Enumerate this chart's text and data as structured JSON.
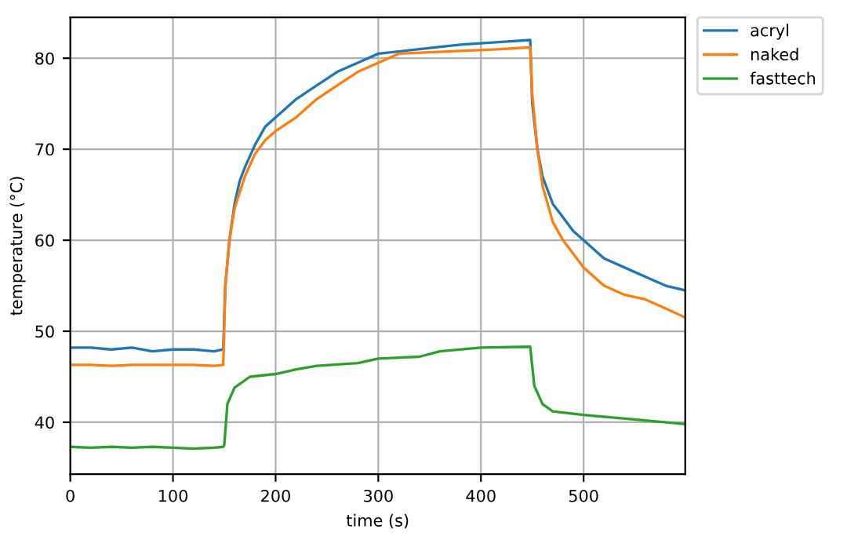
{
  "chart_data": {
    "type": "line",
    "xlabel": "time (s)",
    "ylabel": "temperature (°C)",
    "xlim": [
      0,
      599
    ],
    "ylim": [
      34.3,
      84.5
    ],
    "xticks": [
      0,
      100,
      200,
      300,
      400,
      500
    ],
    "yticks": [
      40,
      50,
      60,
      70,
      80
    ],
    "grid": true,
    "legend": "top right",
    "line_style": "solid",
    "series": [
      {
        "name": "acryl",
        "color": "#1f77b4",
        "x": [
          0,
          20,
          40,
          60,
          80,
          100,
          120,
          140,
          149,
          151,
          155,
          160,
          165,
          170,
          180,
          190,
          200,
          210,
          220,
          240,
          260,
          280,
          300,
          340,
          380,
          420,
          448,
          450,
          455,
          460,
          470,
          480,
          490,
          500,
          520,
          540,
          560,
          580,
          599
        ],
        "values": [
          48.2,
          48.2,
          48,
          48.2,
          47.8,
          48,
          48,
          47.8,
          48,
          55,
          60,
          64,
          66.5,
          68,
          70.5,
          72.5,
          73.5,
          74.5,
          75.5,
          77,
          78.5,
          79.5,
          80.5,
          81,
          81.5,
          81.8,
          82,
          75,
          70,
          67,
          64,
          62.5,
          61,
          60,
          58,
          57,
          56,
          55,
          54.5
        ]
      },
      {
        "name": "naked",
        "color": "#ff7f0e",
        "x": [
          0,
          20,
          40,
          60,
          80,
          100,
          120,
          140,
          149,
          151,
          155,
          160,
          170,
          180,
          190,
          200,
          220,
          240,
          260,
          280,
          300,
          320,
          380,
          420,
          448,
          450,
          455,
          460,
          470,
          480,
          490,
          500,
          520,
          540,
          560,
          580,
          599
        ],
        "values": [
          46.3,
          46.3,
          46.2,
          46.3,
          46.3,
          46.3,
          46.3,
          46.2,
          46.3,
          55,
          60,
          63.5,
          67,
          69.5,
          71,
          72,
          73.5,
          75.5,
          77,
          78.5,
          79.5,
          80.5,
          80.8,
          81,
          81.2,
          76,
          70,
          66,
          62,
          60,
          58.5,
          57,
          55,
          54,
          53.5,
          52.5,
          51.5
        ]
      },
      {
        "name": "fasttech",
        "color": "#2ca02c",
        "x": [
          0,
          20,
          40,
          60,
          80,
          100,
          120,
          140,
          149,
          150,
          153,
          160,
          175,
          200,
          220,
          240,
          280,
          300,
          340,
          360,
          400,
          448,
          452,
          460,
          470,
          500,
          530,
          560,
          599
        ],
        "values": [
          37.3,
          37.2,
          37.3,
          37.2,
          37.3,
          37.2,
          37.1,
          37.2,
          37.3,
          37.5,
          42,
          43.8,
          45,
          45.3,
          45.8,
          46.2,
          46.5,
          47,
          47.2,
          47.8,
          48.2,
          48.3,
          44,
          42,
          41.2,
          40.8,
          40.5,
          40.2,
          39.8
        ]
      }
    ]
  }
}
